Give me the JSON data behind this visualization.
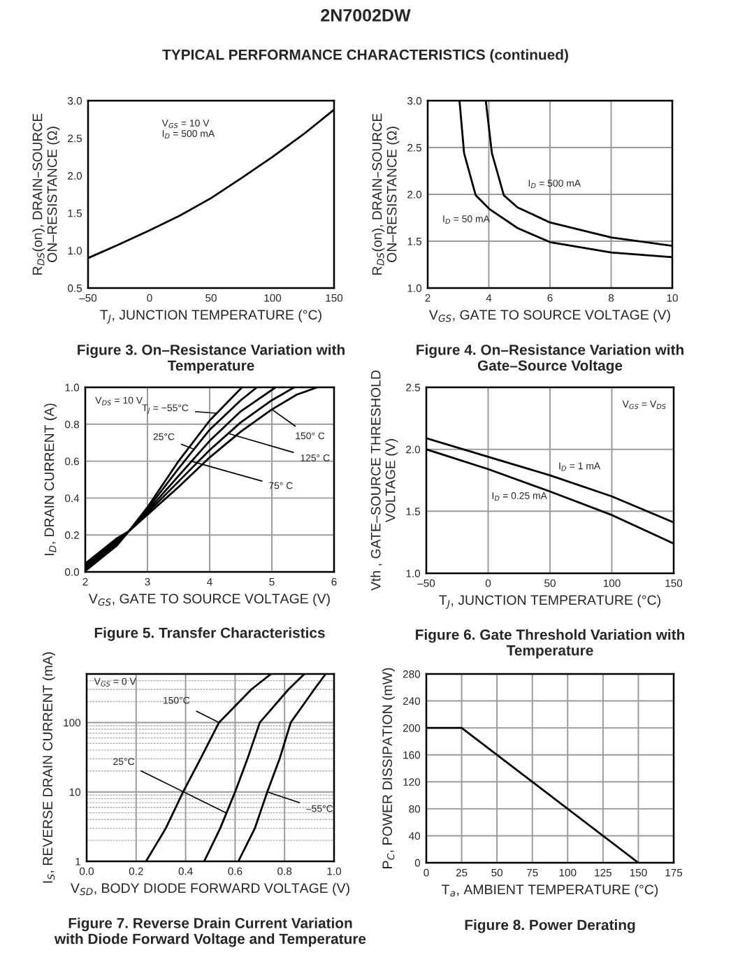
{
  "chart_data": [
    {
      "type": "line",
      "title": "2N7002DW",
      "subtitle": "TYPICAL PERFORMANCE CHARACTERISTICS (continued)",
      "xlabel": "T$_{J}$, JUNCTION TEMPERATURE (°C)",
      "ylabel": "R$_{DS}$(on), DRAIN–SOURCE\nON–RESISTANCE (Ω)",
      "x": [
        -50,
        -25,
        0,
        25,
        50,
        75,
        100,
        125,
        150
      ],
      "series": [
        {
          "color": "#000000",
          "values": [
            0.9,
            1.08,
            1.27,
            1.47,
            1.7,
            1.97,
            2.25,
            2.55,
            2.88
          ]
        }
      ],
      "xlim": [
        -50,
        150
      ],
      "ylim": [
        0.5,
        3.0
      ],
      "xticks": [
        {
          "value": -50,
          "label": "–50"
        },
        0,
        50,
        100,
        150
      ],
      "yticks": [
        0.5,
        {
          "value": 1,
          "label": "1.0"
        },
        1.5,
        {
          "value": 2,
          "label": "2.0"
        },
        2.5,
        {
          "value": 3,
          "label": "3.0"
        }
      ],
      "annotations": [
        "V$_{GS}$ = 10 V\nI$_{D}$ = 500 mA",
        "Figure 3. On–Resistance Variation with\nTemperature"
      ]
    },
    {
      "type": "line",
      "grid": true,
      "xlabel": "V$_{GS}$, GATE TO SOURCE VOLTAGE (V)",
      "ylabel": "R$_{DS}$(on), DRAIN–SOURCE\nON–RESISTANCE (Ω)",
      "series": [
        {
          "color": "#000000",
          "x": [
            3.04,
            3.19,
            3.57,
            4.03,
            4.94,
            6.0,
            8.0,
            10.0
          ],
          "values": [
            3.0,
            2.44,
            1.99,
            1.84,
            1.64,
            1.49,
            1.38,
            1.33
          ]
        },
        {
          "color": "#000000",
          "x": [
            3.9,
            4.1,
            4.49,
            4.94,
            6.0,
            8.0,
            10.0
          ],
          "values": [
            3.0,
            2.44,
            1.99,
            1.86,
            1.7,
            1.54,
            1.45
          ]
        }
      ],
      "xlim": [
        2,
        10
      ],
      "ylim": [
        1.0,
        3.0
      ],
      "xticks": [
        2,
        4,
        6,
        8,
        10
      ],
      "yticks": [
        {
          "value": 1,
          "label": "1.0"
        },
        1.5,
        {
          "value": 2,
          "label": "2.0"
        },
        2.5,
        {
          "value": 3,
          "label": "3.0"
        }
      ],
      "annotations": [
        "I$_{D}$ = 500 mA",
        "I$_{D}$ = 50 mA",
        "Figure 4. On–Resistance Variation with\nGate–Source Voltage"
      ]
    },
    {
      "type": "line",
      "grid": true,
      "xlabel": "V$_{GS}$, GATE TO SOURCE VOLTAGE (V)",
      "ylabel": "I$_{D}$, DRAIN CURRENT (A)",
      "series": [
        {
          "color": "#000000",
          "x": [
            2,
            2.5,
            2.7,
            3,
            3.5,
            4,
            4.52
          ],
          "values": [
            0.005,
            0.14,
            0.22,
            0.35,
            0.6,
            0.82,
            1.0
          ]
        },
        {
          "color": "#000000",
          "x": [
            2,
            2.5,
            2.7,
            3,
            3.5,
            4,
            4.5,
            4.76
          ],
          "values": [
            0.015,
            0.15,
            0.22,
            0.34,
            0.56,
            0.77,
            0.93,
            1.0
          ]
        },
        {
          "color": "#000000",
          "x": [
            2,
            2.5,
            2.7,
            3,
            3.5,
            4,
            4.5,
            5.06
          ],
          "values": [
            0.025,
            0.16,
            0.22,
            0.33,
            0.52,
            0.71,
            0.87,
            1.0
          ]
        },
        {
          "color": "#000000",
          "x": [
            2,
            2.5,
            2.7,
            3,
            3.5,
            4,
            4.5,
            5,
            5.36
          ],
          "values": [
            0.035,
            0.17,
            0.22,
            0.32,
            0.49,
            0.66,
            0.81,
            0.93,
            1.0
          ]
        },
        {
          "color": "#000000",
          "x": [
            2,
            2.5,
            2.7,
            3,
            3.5,
            4,
            4.5,
            5,
            5.4,
            5.73
          ],
          "values": [
            0.045,
            0.18,
            0.22,
            0.31,
            0.46,
            0.62,
            0.76,
            0.88,
            0.96,
            1.0
          ]
        }
      ],
      "xlim": [
        2,
        6
      ],
      "ylim": [
        0.0,
        1.0
      ],
      "xticks": [
        2,
        3,
        4,
        5,
        6
      ],
      "yticks": [
        {
          "value": 0,
          "label": "0.0"
        },
        0.2,
        0.4,
        0.6,
        0.8,
        {
          "value": 1,
          "label": "1.0"
        }
      ],
      "annotations": [
        "V$_{DS}$ = 10 V",
        {
          "text": "T$_{J}$ = −55°C",
          "x": 4.1,
          "y": 0.86
        },
        {
          "text": "25°C",
          "x": 3.75,
          "y": 0.665
        },
        {
          "text": "75° C",
          "x": 3.7,
          "y": 0.6
        },
        {
          "text": "125° C",
          "x": 4.3,
          "y": 0.75
        },
        {
          "text": "150° C",
          "x": 5.0,
          "y": 0.88
        },
        "Figure 5. Transfer Characteristics"
      ]
    },
    {
      "type": "line",
      "grid": true,
      "xlabel": "T$_{J}$, JUNCTION TEMPERATURE (°C)",
      "ylabel": "Vth , GATE–SOURCE THRESHOLD\nVOLTAGE (V)",
      "x": [
        -50,
        0,
        50,
        100,
        150
      ],
      "series": [
        {
          "color": "#000000",
          "values": [
            2.09,
            1.94,
            1.79,
            1.62,
            1.41
          ]
        },
        {
          "color": "#000000",
          "values": [
            2.0,
            1.84,
            1.66,
            1.47,
            1.24
          ]
        }
      ],
      "xlim": [
        -50,
        150
      ],
      "ylim": [
        1.0,
        2.5
      ],
      "xticks": [
        {
          "value": -50,
          "label": "–50"
        },
        0,
        50,
        100,
        150
      ],
      "yticks": [
        {
          "value": 1,
          "label": "1.0"
        },
        1.5,
        {
          "value": 2,
          "label": "2.0"
        },
        2.5
      ],
      "annotations": [
        "V$_{GS}$ = V$_{DS}$",
        "I$_{D}$ = 1 mA",
        "I$_{D}$ = 0.25 mA",
        "Figure 6. Gate Threshold Variation with\nTemperature"
      ]
    },
    {
      "type": "line",
      "grid": true,
      "log": true,
      "xlabel": "V$_{SD}$, BODY DIODE FORWARD VOLTAGE (V)",
      "ylabel": "I$_{S}$, REVERSE DRAIN CURRENT (mA)",
      "series": [
        {
          "color": "#000000",
          "x": [
            0.24,
            0.32,
            0.39,
            0.46,
            0.535,
            0.666,
            0.745
          ],
          "values": [
            1,
            3,
            10,
            30,
            100,
            300,
            500
          ]
        },
        {
          "color": "#000000",
          "x": [
            0.475,
            0.54,
            0.6,
            0.65,
            0.7,
            0.816,
            0.88
          ],
          "values": [
            1,
            3,
            10,
            30,
            100,
            300,
            500
          ]
        },
        {
          "color": "#000000",
          "x": [
            0.613,
            0.68,
            0.73,
            0.78,
            0.825,
            0.92,
            0.966
          ],
          "values": [
            1,
            3,
            10,
            30,
            100,
            300,
            500
          ]
        }
      ],
      "xlim": [
        0.0,
        1.0
      ],
      "ylim": [
        1,
        500
      ],
      "xticks": [
        {
          "value": 0,
          "label": "0.0"
        },
        0.2,
        0.4,
        0.6,
        0.8,
        {
          "value": 1,
          "label": "1.0"
        }
      ],
      "yticks": [
        1,
        10,
        100
      ],
      "annotations": [
        "V$_{GS}$ = 0 V",
        {
          "text": "150°C",
          "x": 0.535,
          "y": 100
        },
        {
          "text": "25°C",
          "x": 0.5625,
          "y": 5
        },
        {
          "text": "–55°C",
          "x": 0.73,
          "y": 10
        },
        "Figure 7. Reverse Drain Current Variation\nwith Diode Forward Voltage and Temperature"
      ]
    },
    {
      "type": "line",
      "grid": true,
      "xlabel": "T$_{a}$, AMBIENT TEMPERATURE (°C)",
      "ylabel": "P$_{C}$, POWER DISSIPATION (mW)",
      "x": [
        0,
        25,
        150
      ],
      "series": [
        {
          "color": "#000000",
          "values": [
            200,
            200,
            0
          ]
        }
      ],
      "xlim": [
        0,
        175
      ],
      "ylim": [
        0,
        280
      ],
      "xticks": [
        0,
        25,
        50,
        75,
        100,
        125,
        150,
        175
      ],
      "yticks": [
        0,
        40,
        80,
        120,
        160,
        200,
        240,
        280
      ],
      "annotations": [
        "Figure 8. Power Derating"
      ]
    }
  ]
}
